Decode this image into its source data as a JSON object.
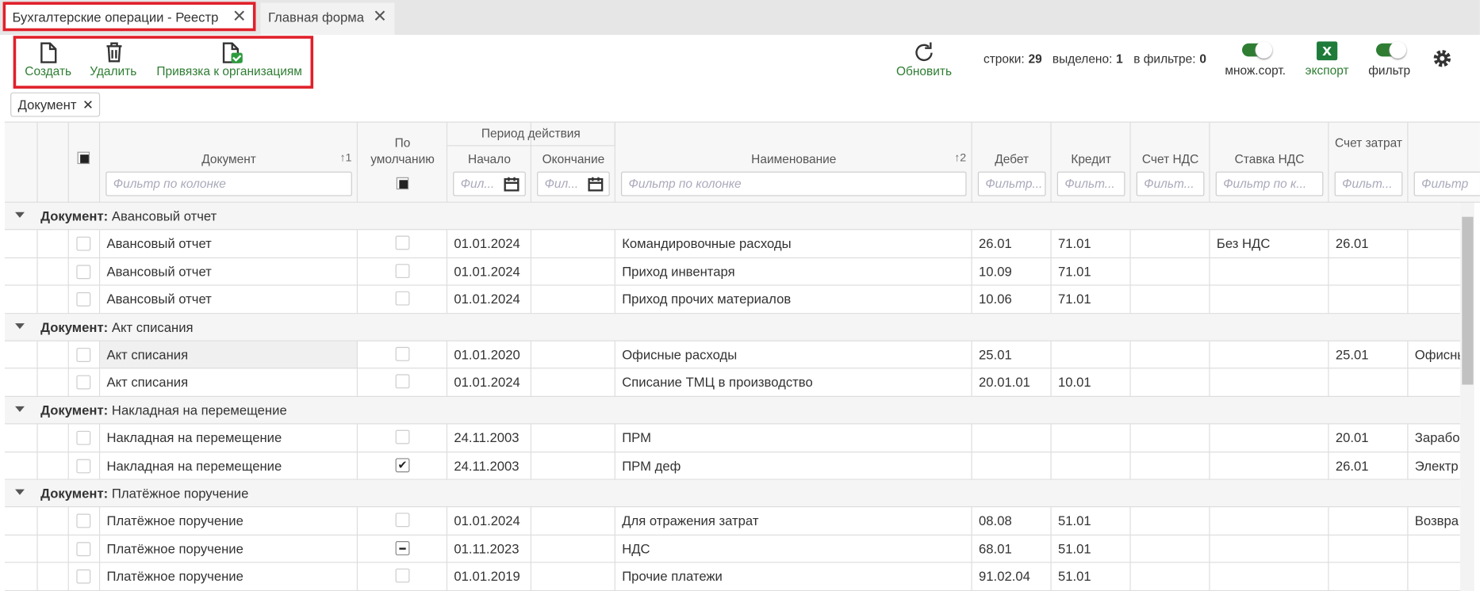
{
  "tabs": [
    {
      "label": "Бухгалтерские операции - Реестр"
    },
    {
      "label": "Главная форма"
    }
  ],
  "toolbar": {
    "buttons": [
      "Создать",
      "Удалить",
      "Привязка к организациям"
    ],
    "refresh": "Обновить",
    "stats": [
      {
        "label": "строки:",
        "value": 29
      },
      {
        "label": "выделено:",
        "value": 1
      },
      {
        "label": "в фильтре:",
        "value": 0
      }
    ],
    "toggles": [
      "множ.сорт.",
      "фильтр"
    ],
    "export": "экспорт"
  },
  "grouping_chip": "Документ",
  "header": {
    "columns": [
      {
        "label": "Документ",
        "sort": "↑1",
        "filter": "Фильтр по колонке"
      },
      {
        "label": "По умолчанию"
      },
      {
        "label": "Начало",
        "filter": "Фил..."
      },
      {
        "label": "Окончание",
        "filter": "Фил..."
      },
      {
        "label": "Наименование",
        "sort": "↑2",
        "filter": "Фильтр по колонке"
      },
      {
        "label": "Дебет",
        "filter": "Фильтр..."
      },
      {
        "label": "Кредит",
        "filter": "Фильт..."
      },
      {
        "label": "Счет НДС",
        "filter": "Фильт..."
      },
      {
        "label": "Ставка НДС",
        "filter": "Фильтр по к..."
      },
      {
        "label": "Счет затрат",
        "filter": "Фильт..."
      },
      {
        "filter": "Фильтр"
      }
    ],
    "period_group": "Период действия"
  },
  "groups": [
    {
      "label": "Документ:",
      "value": "Авансовый отчет",
      "rows": [
        {
          "default": "empty",
          "cells": [
            "Авансовый отчет",
            "01.01.2024",
            null,
            "Командировочные расходы",
            "26.01",
            "71.01",
            null,
            "Без НДС",
            "26.01",
            null
          ]
        },
        {
          "default": "empty",
          "cells": [
            "Авансовый отчет",
            "01.01.2024",
            null,
            "Приход инвентаря",
            "10.09",
            "71.01",
            null,
            null,
            null,
            null
          ]
        },
        {
          "default": "empty",
          "cells": [
            "Авансовый отчет",
            "01.01.2024",
            null,
            "Приход прочих материалов",
            "10.06",
            "71.01",
            null,
            null,
            null,
            null
          ]
        }
      ]
    },
    {
      "label": "Документ:",
      "value": "Акт списания",
      "rows": [
        {
          "default": "empty",
          "cells": [
            "Акт списания",
            "01.01.2020",
            null,
            "Офисные расходы",
            "25.01",
            null,
            null,
            null,
            "25.01",
            "Офисны"
          ]
        },
        {
          "default": "empty",
          "cells": [
            "Акт списания",
            "01.01.2024",
            null,
            "Списание ТМЦ в производство",
            "20.01.01",
            "10.01",
            null,
            null,
            null,
            null
          ]
        }
      ]
    },
    {
      "label": "Документ:",
      "value": "Накладная на перемещение",
      "rows": [
        {
          "default": "empty",
          "cells": [
            "Накладная на перемещение",
            "24.11.2003",
            null,
            "ПРМ",
            null,
            null,
            null,
            null,
            "20.01",
            "Зарабо"
          ]
        },
        {
          "default": "checked",
          "cells": [
            "Накладная на перемещение",
            "24.11.2003",
            null,
            "ПРМ деф",
            null,
            null,
            null,
            null,
            "26.01",
            "Электр"
          ]
        }
      ]
    },
    {
      "label": "Документ:",
      "value": "Платёжное поручение",
      "rows": [
        {
          "default": "empty",
          "cells": [
            "Платёжное поручение",
            "01.01.2024",
            null,
            "Для отражения затрат",
            "08.08",
            "51.01",
            null,
            null,
            null,
            "Возвра"
          ]
        },
        {
          "default": "indeterminate",
          "cells": [
            "Платёжное поручение",
            "01.11.2023",
            null,
            "НДС",
            "68.01",
            "51.01",
            null,
            null,
            null,
            null
          ]
        },
        {
          "default": "empty",
          "cells": [
            "Платёжное поручение",
            "01.01.2019",
            null,
            "Прочие платежи",
            "91.02.04",
            "51.01",
            null,
            null,
            null,
            null
          ]
        }
      ]
    }
  ]
}
